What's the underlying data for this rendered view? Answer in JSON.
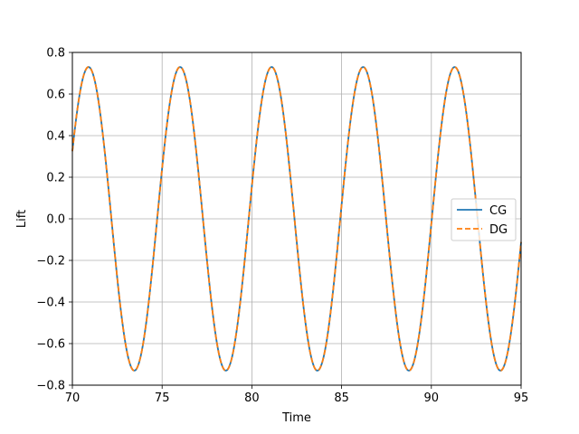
{
  "chart_data": {
    "type": "line",
    "title": "",
    "xlabel": "Time",
    "ylabel": "Lift",
    "xlim": [
      70,
      95
    ],
    "ylim": [
      -0.8,
      0.8
    ],
    "xticks": [
      70,
      75,
      80,
      85,
      90,
      95
    ],
    "xtick_labels": [
      "70",
      "75",
      "80",
      "85",
      "90",
      "95"
    ],
    "yticks": [
      -0.8,
      -0.6,
      -0.4,
      -0.2,
      0.0,
      0.2,
      0.4,
      0.6,
      0.8
    ],
    "ytick_labels": [
      "−0.8",
      "−0.6",
      "−0.4",
      "−0.2",
      "0.0",
      "0.2",
      "0.4",
      "0.6",
      "0.8"
    ],
    "grid": true,
    "legend_position": "center-right",
    "signal": {
      "shape": "sinusoid",
      "amplitude": 0.73,
      "period": 5.1,
      "peak_times": [
        70.9,
        76.0,
        81.1,
        86.2,
        91.3
      ],
      "trough_times": [
        73.45,
        78.55,
        83.65,
        88.75,
        93.85
      ]
    },
    "series": [
      {
        "name": "CG",
        "color": "#1f77b4",
        "style": "solid"
      },
      {
        "name": "DG",
        "color": "#ff7f0e",
        "style": "dashed"
      }
    ]
  }
}
